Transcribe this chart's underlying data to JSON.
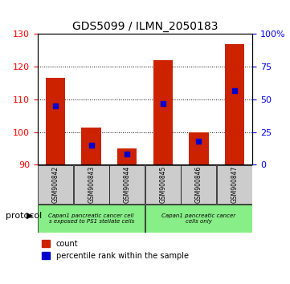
{
  "title": "GDS5099 / ILMN_2050183",
  "samples": [
    "GSM900842",
    "GSM900843",
    "GSM900844",
    "GSM900845",
    "GSM900846",
    "GSM900847"
  ],
  "count_values": [
    116.5,
    101.5,
    95.0,
    122.0,
    100.0,
    127.0
  ],
  "percentile_values": [
    45,
    15,
    8,
    47,
    18,
    57
  ],
  "y_min": 90,
  "y_max": 130,
  "y_ticks": [
    90,
    100,
    110,
    120,
    130
  ],
  "y_right_ticks": [
    0,
    25,
    50,
    75,
    100
  ],
  "y_right_labels": [
    "0",
    "25",
    "50",
    "75",
    "100%"
  ],
  "bar_color": "#cc2200",
  "blue_color": "#0000cc",
  "group1_samples": [
    "GSM900842",
    "GSM900843",
    "GSM900844"
  ],
  "group2_samples": [
    "GSM900845",
    "GSM900846",
    "GSM900847"
  ],
  "group1_label": "Capan1 pancreatic cancer cell\ns exposed to PS1 stellate cells",
  "group2_label": "Capan1 pancreatic cancer\ncells only",
  "group_bg_color": "#88ee88",
  "tick_bg_color": "#cccccc",
  "protocol_label": "protocol",
  "legend_count": "count",
  "legend_percentile": "percentile rank within the sample"
}
